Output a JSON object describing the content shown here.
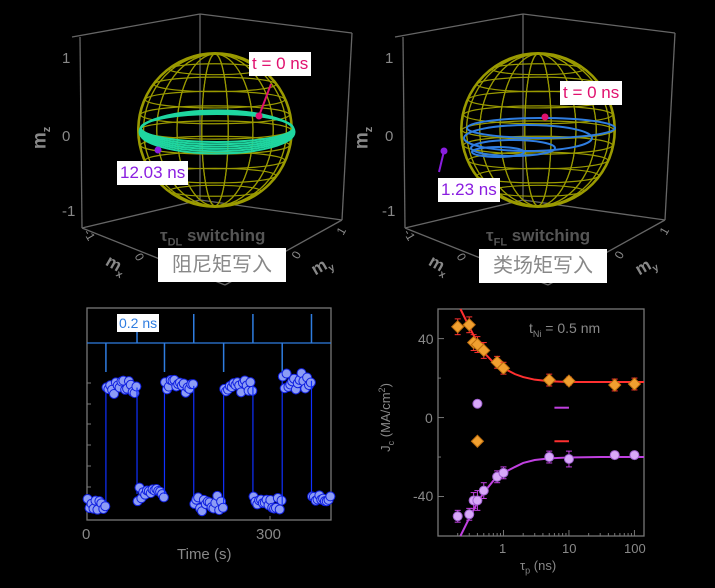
{
  "panel_dl": {
    "z_ticks": [
      "1",
      "0",
      "-1"
    ],
    "z_label": "m",
    "z_sub": "z",
    "x_label": "m",
    "x_sub": "x",
    "y_label": "m",
    "y_sub": "y",
    "x_ticks": [
      "-1",
      "0"
    ],
    "y_ticks": [
      "0",
      "1"
    ],
    "start_tag": "t = 0 ns",
    "end_tag": "12.03 ns",
    "title_sym": "τ",
    "title_sub": "DL",
    "title_word": "switching",
    "cn_caption": "阻尼矩写入",
    "trajectory_color": "#1fd6a0",
    "sphere_color": "#9a9a00"
  },
  "panel_fl": {
    "z_ticks": [
      "1",
      "0",
      "-1"
    ],
    "z_label": "m",
    "z_sub": "z",
    "x_label": "m",
    "x_sub": "x",
    "y_label": "m",
    "y_sub": "y",
    "x_ticks": [
      "-1",
      "0"
    ],
    "y_ticks": [
      "0",
      "1"
    ],
    "start_tag": "t = 0 ns",
    "end_tag": "1.23 ns",
    "title_sym": "τ",
    "title_sub": "FL",
    "title_word": "switching",
    "cn_caption": "类场矩写入",
    "trajectory_color": "#2f7de0",
    "sphere_color": "#9a9a00"
  },
  "colors": {
    "start": "#e0106e",
    "end": "#8a1ee0"
  },
  "chart_data": [
    {
      "type": "scatter",
      "xlabel": "Time (s)",
      "ylabel": "",
      "xlim": [
        0,
        400
      ],
      "x_ticks": [
        "0",
        "300"
      ],
      "x_tick_values": [
        0,
        300
      ],
      "pulse_label": "0.2 ns",
      "pulses_bottom_row": [
        31,
        127,
        224,
        320
      ],
      "pulses_top_row": [
        82,
        175,
        272,
        368
      ],
      "ylim": [
        0,
        1
      ],
      "state_segments": [
        {
          "from": 0,
          "to": 31,
          "level": 0.08
        },
        {
          "from": 31,
          "to": 82,
          "level": 0.76
        },
        {
          "from": 82,
          "to": 127,
          "level": 0.13
        },
        {
          "from": 127,
          "to": 175,
          "level": 0.77
        },
        {
          "from": 175,
          "to": 224,
          "level": 0.07
        },
        {
          "from": 224,
          "to": 272,
          "level": 0.77
        },
        {
          "from": 272,
          "to": 320,
          "level": 0.07
        },
        {
          "from": 320,
          "to": 368,
          "level": 0.8
        },
        {
          "from": 368,
          "to": 400,
          "level": 0.11
        }
      ],
      "colors": {
        "points": "#8c9cf5",
        "edge": "#1020e0",
        "line": "#1030ff",
        "pulse": "#2f7de0"
      }
    },
    {
      "type": "scatter",
      "xlabel": "τ",
      "xlabel_sub": "p",
      "xlabel_unit": " (ns)",
      "ylabel": "J",
      "ylabel_sub": "c",
      "ylabel_unit": " (MA/cm",
      "ylabel_sup": "2",
      "ylabel_close": ")",
      "x_scale": "log",
      "xlim": [
        0.1,
        140
      ],
      "ylim": [
        -60,
        55
      ],
      "x_ticks": [
        "1",
        "10",
        "100"
      ],
      "x_tick_values": [
        1,
        10,
        100
      ],
      "y_ticks": [
        "40",
        "0",
        "-40"
      ],
      "y_tick_values": [
        40,
        0,
        -40
      ],
      "annotation": "t",
      "annotation_sub": "Ni",
      "annotation_rest": " = 0.5 nm",
      "series": [
        {
          "marker": "diamond",
          "color": "#f0a030",
          "x": [
            0.2,
            0.3,
            0.35,
            0.4,
            0.5,
            0.8,
            1,
            5,
            10,
            50,
            100
          ],
          "y": [
            46,
            47,
            38,
            37,
            34,
            28,
            25,
            19,
            18.5,
            16.5,
            17
          ],
          "err": [
            4,
            4,
            4,
            4,
            4,
            3,
            3,
            3,
            2,
            3,
            3
          ]
        },
        {
          "marker": "circle",
          "color": "#d8a8f8",
          "x": [
            0.2,
            0.3,
            0.35,
            0.4,
            0.5,
            0.8,
            1,
            5,
            10,
            50,
            100
          ],
          "y": [
            -50,
            -49,
            -42,
            -42,
            -37,
            -30,
            -28,
            -20,
            -21,
            -19,
            -19
          ],
          "err": [
            3,
            3,
            4,
            5,
            4,
            3,
            3,
            3,
            4,
            1,
            1
          ]
        },
        {
          "marker": "diamond",
          "color": "#f0a030",
          "x": [
            0.4
          ],
          "y": [
            -12
          ],
          "err": [
            0
          ]
        },
        {
          "marker": "circle",
          "color": "#d8a8f8",
          "x": [
            0.4
          ],
          "y": [
            7
          ],
          "err": [
            0
          ]
        }
      ],
      "fits": [
        {
          "color": "#ff3030",
          "x": [
            0.22,
            0.3,
            0.4,
            0.5,
            0.7,
            1,
            1.5,
            2,
            3,
            5,
            10,
            30,
            140
          ],
          "y": [
            55,
            46,
            38,
            33,
            28,
            25,
            22,
            20.5,
            19.2,
            18.4,
            18,
            18,
            18
          ]
        },
        {
          "color": "#c040e0",
          "x": [
            0.22,
            0.3,
            0.4,
            0.5,
            0.7,
            1,
            1.5,
            2,
            3,
            5,
            10,
            30,
            140
          ],
          "y": [
            -60,
            -51,
            -43,
            -38,
            -32,
            -28,
            -25,
            -23,
            -21.5,
            -20.7,
            -20.2,
            -20,
            -20
          ]
        }
      ],
      "legend_lines": [
        {
          "color": "#c040e0",
          "x": [
            6,
            10
          ],
          "y": 5
        },
        {
          "color": "#ff3030",
          "x": [
            6,
            10
          ],
          "y": -12
        }
      ]
    }
  ]
}
